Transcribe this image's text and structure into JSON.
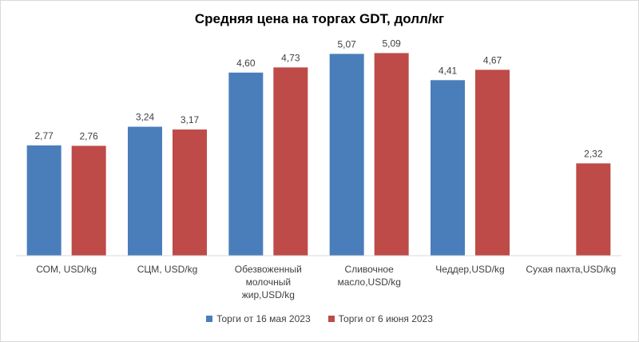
{
  "chart_data": {
    "type": "bar",
    "title": "Средняя цена на торгах GDT, долл/кг",
    "categories": [
      [
        "СОМ, USD/kg"
      ],
      [
        "СЦМ, USD/kg"
      ],
      [
        "Обезвоженный",
        "молочный",
        "жир,USD/kg"
      ],
      [
        "Сливочное",
        "масло,USD/kg"
      ],
      [
        "Чеддер,USD/kg"
      ],
      [
        "Сухая пахта,USD/kg"
      ]
    ],
    "series": [
      {
        "name": "Торги от 16 мая 2023",
        "color": "#4a7ebb",
        "values": [
          2.77,
          3.24,
          4.6,
          5.07,
          4.41,
          null
        ],
        "labels": [
          "2,77",
          "3,24",
          "4,60",
          "5,07",
          "4,41",
          ""
        ]
      },
      {
        "name": "Торги от 6 июня 2023",
        "color": "#be4b48",
        "values": [
          2.76,
          3.17,
          4.73,
          5.09,
          4.67,
          2.32
        ],
        "labels": [
          "2,76",
          "3,17",
          "4,73",
          "5,09",
          "4,67",
          "2,32"
        ]
      }
    ],
    "ylim": [
      0,
      5.5
    ],
    "grid": false,
    "legend_position": "bottom"
  }
}
